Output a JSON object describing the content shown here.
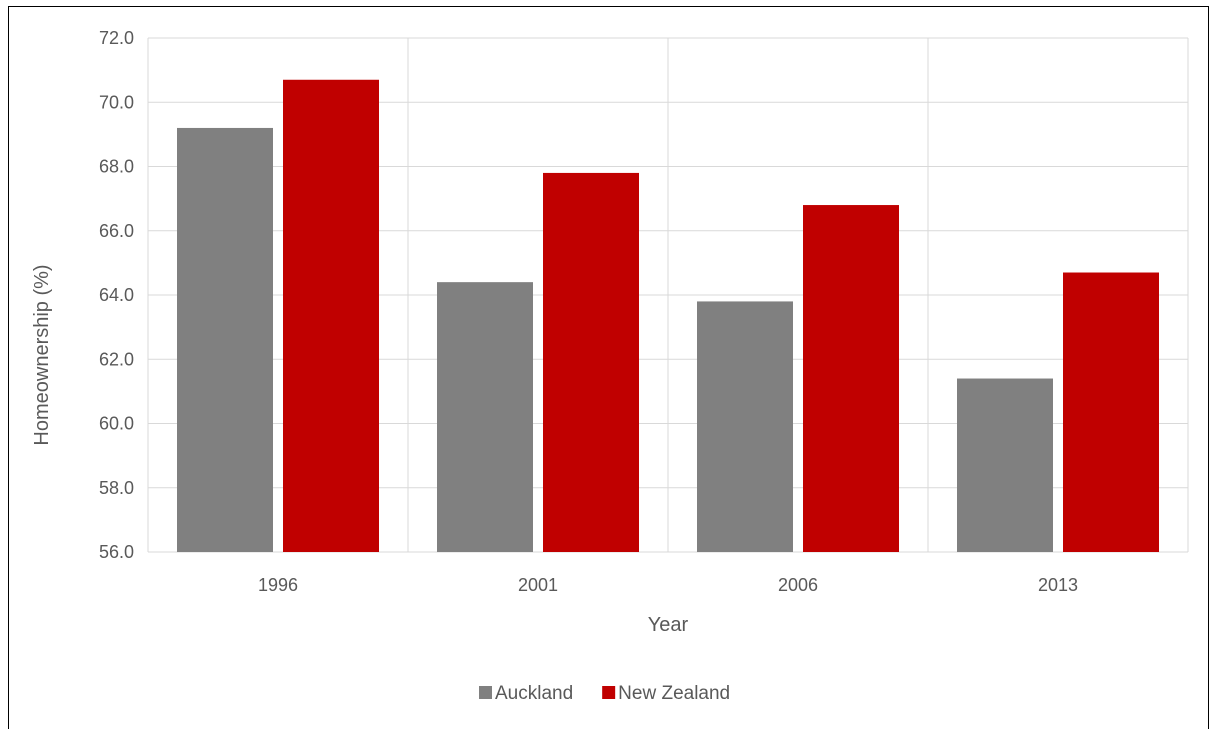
{
  "chart_data": {
    "type": "bar",
    "categories": [
      "1996",
      "2001",
      "2006",
      "2013"
    ],
    "series": [
      {
        "name": "Auckland",
        "color": "#808080",
        "values": [
          69.2,
          64.4,
          63.8,
          61.4
        ]
      },
      {
        "name": "New Zealand",
        "color": "#c00000",
        "values": [
          70.7,
          67.8,
          66.8,
          64.7
        ]
      }
    ],
    "xlabel": "Year",
    "ylabel": "Homeownership (%)",
    "ylim": [
      56.0,
      72.0
    ],
    "yticks": [
      "56.0",
      "58.0",
      "60.0",
      "62.0",
      "64.0",
      "66.0",
      "68.0",
      "70.0",
      "72.0"
    ],
    "grid": true,
    "legend_position": "bottom"
  }
}
